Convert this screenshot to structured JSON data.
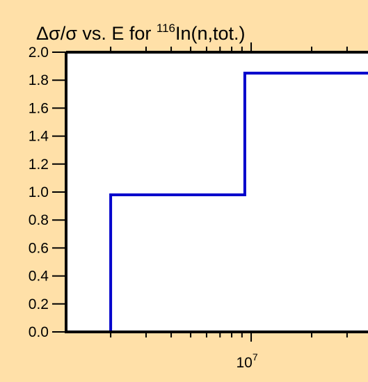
{
  "chart_data": {
    "type": "line",
    "title_parts": {
      "prefix": "Δσ/σ vs. E for ",
      "superscript": "116",
      "suffix": "In(n,tot.)"
    },
    "xlabel": "",
    "ylabel": "",
    "x_scale": "log",
    "xlim": [
      1200000,
      40000000
    ],
    "ylim": [
      0,
      2.0
    ],
    "y_ticks": [
      "0.0",
      "0.2",
      "0.4",
      "0.6",
      "0.8",
      "1.0",
      "1.2",
      "1.4",
      "1.6",
      "1.8",
      "2.0"
    ],
    "x_major_tick_labels": [
      {
        "base": "10",
        "exponent": "7",
        "value": 10000000
      }
    ],
    "line_style": "step",
    "series": [
      {
        "color": "#0000CC",
        "x": [
          2000000,
          2000000,
          9300000,
          9300000,
          40000000
        ],
        "y": [
          0.0,
          0.98,
          0.98,
          1.85,
          1.85
        ]
      }
    ],
    "grid": false
  }
}
